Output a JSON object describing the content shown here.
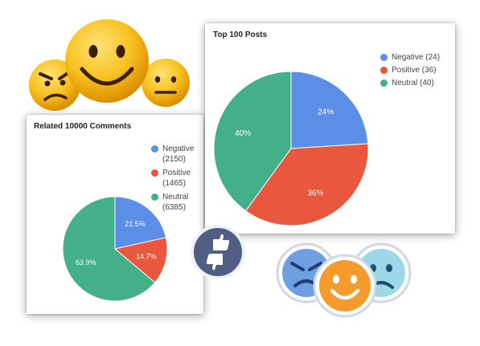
{
  "colors": {
    "negative": "#5b8ee6",
    "positive": "#e8573e",
    "neutral": "#43b08a"
  },
  "chart_data": [
    {
      "type": "pie",
      "title": "Related 10000 Comments",
      "slices": [
        {
          "label": "Negative",
          "value": 2150,
          "display_value": "(2150)",
          "pct_label": "21.5%",
          "color": "#5b8ee6"
        },
        {
          "label": "Positive",
          "value": 1465,
          "display_value": "(1465)",
          "pct_label": "14.7%",
          "color": "#e8573e"
        },
        {
          "label": "Neutral",
          "value": 6385,
          "display_value": "(6385)",
          "pct_label": "63.9%",
          "color": "#43b08a"
        }
      ],
      "legend_position": "right"
    },
    {
      "type": "pie",
      "title": "Top 100 Posts",
      "slices": [
        {
          "label": "Negative",
          "value": 24,
          "display_value": "(24)",
          "pct_label": "24%",
          "color": "#5b8ee6"
        },
        {
          "label": "Positive",
          "value": 36,
          "display_value": "(36)",
          "pct_label": "36%",
          "color": "#e8573e"
        },
        {
          "label": "Neutral",
          "value": 40,
          "display_value": "(40)",
          "pct_label": "40%",
          "color": "#43b08a"
        }
      ],
      "legend_position": "top-right"
    }
  ],
  "decorations": {
    "top_left_icons": [
      "angry-emoji-icon",
      "happy-emoji-icon",
      "neutral-emoji-icon"
    ],
    "center_icon": "thumbs-up-down-icon",
    "bottom_right_icons": [
      "angry-face-icon",
      "smiley-face-icon",
      "sad-face-icon"
    ]
  }
}
